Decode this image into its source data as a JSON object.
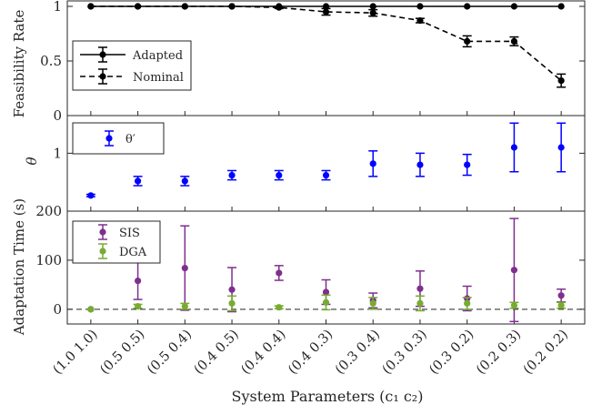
{
  "chart_data": [
    {
      "type": "scatter",
      "ylabel": "Feasibility Rate",
      "ylim": [
        0,
        1.05
      ],
      "yticks": [
        "0",
        "0.5",
        "1"
      ],
      "legend_placement": "left",
      "series": [
        {
          "name": "Adapted",
          "color": "#000000",
          "line": "solid",
          "values": [
            1,
            1,
            1,
            1,
            1,
            1,
            1,
            1,
            1,
            1,
            1
          ],
          "err": [
            0,
            0,
            0,
            0,
            0,
            0,
            0,
            0,
            0,
            0,
            0
          ]
        },
        {
          "name": "Nominal",
          "color": "#000000",
          "line": "dashed",
          "values": [
            1,
            1,
            1,
            1,
            0.99,
            0.95,
            0.94,
            0.87,
            0.68,
            0.68,
            0.32
          ],
          "err": [
            0,
            0,
            0,
            0,
            0.01,
            0.03,
            0.03,
            0.02,
            0.05,
            0.04,
            0.06
          ]
        }
      ]
    },
    {
      "type": "scatter",
      "ylabel": "θ",
      "ylim": [
        0,
        1.65
      ],
      "yticks": [
        "1"
      ],
      "legend_placement": "left",
      "series": [
        {
          "name": "θ′",
          "color": "#0000ff",
          "values": [
            0.27,
            0.52,
            0.52,
            0.62,
            0.62,
            0.62,
            0.82,
            0.8,
            0.8,
            1.1,
            1.1
          ],
          "err": [
            0.02,
            0.08,
            0.08,
            0.08,
            0.08,
            0.08,
            0.22,
            0.2,
            0.18,
            0.42,
            0.42
          ]
        }
      ]
    },
    {
      "type": "scatter",
      "ylabel": "Adaptation Time (s)",
      "xlabel": "System Parameters (c₁  c₂)",
      "ylim": [
        -30,
        200
      ],
      "yticks": [
        "0",
        "100",
        "200"
      ],
      "legend_placement": "top-left",
      "categories": [
        "(1.0 1.0)",
        "(0.5 0.5)",
        "(0.5 0.4)",
        "(0.4 0.5)",
        "(0.4 0.4)",
        "(0.4 0.3)",
        "(0.3 0.4)",
        "(0.3 0.3)",
        "(0.3 0.2)",
        "(0.2 0.3)",
        "(0.2 0.2)"
      ],
      "series": [
        {
          "name": "SIS",
          "color": "#7e2f8e",
          "values": [
            0,
            58,
            84,
            40,
            74,
            35,
            18,
            42,
            22,
            80,
            28
          ],
          "err": [
            0,
            38,
            86,
            45,
            15,
            25,
            15,
            36,
            25,
            105,
            13
          ]
        },
        {
          "name": "DGA",
          "color": "#77ac30",
          "values": [
            0,
            6,
            6,
            12,
            4,
            14,
            12,
            12,
            12,
            8,
            8
          ],
          "err": [
            0,
            4,
            6,
            15,
            3,
            15,
            12,
            15,
            12,
            6,
            6
          ]
        }
      ]
    }
  ]
}
